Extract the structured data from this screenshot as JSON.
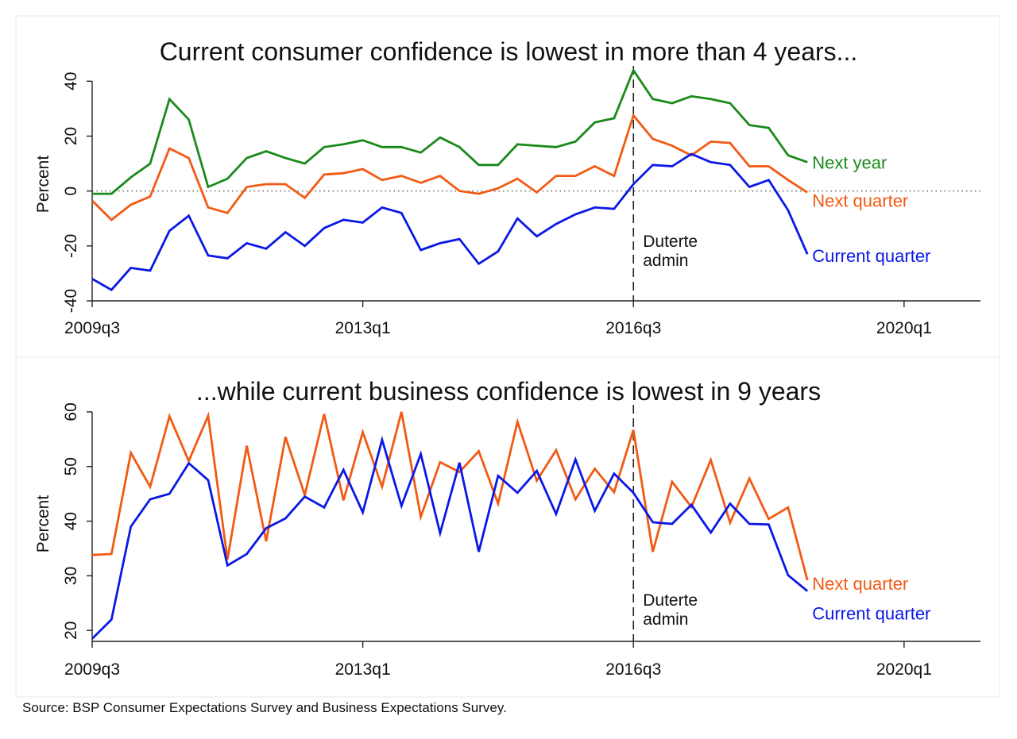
{
  "source_note": "Source: BSP Consumer Expectations Survey and Business Expectations Survey.",
  "chart_data": [
    {
      "type": "line",
      "title": "Current consumer confidence is lowest in more than 4 years...",
      "xlabel": "",
      "ylabel": "Percent",
      "x_start_quarter": "2009q3",
      "x_tick_labels": [
        "2009q3",
        "2013q1",
        "2016q3",
        "2020q1"
      ],
      "xlim": [
        "2009q3",
        "2020q4"
      ],
      "ylim": [
        -40,
        45
      ],
      "y_ticks": [
        -40,
        -20,
        0,
        20,
        40
      ],
      "y_tick_labels": [
        "-40",
        "-20",
        "0",
        "20",
        "40"
      ],
      "reference_line_y": 0,
      "marker": {
        "x": "2016q3",
        "label_lines": [
          "Duterte",
          "admin"
        ]
      },
      "legend_placement": "right-end labels",
      "series": [
        {
          "name": "Next year",
          "color": "#1a8a1a",
          "values": [
            -1,
            -1,
            5,
            10,
            33.5,
            26,
            1.5,
            4.5,
            12,
            14.5,
            12,
            10,
            16,
            17,
            18.5,
            16,
            16,
            14,
            19.5,
            16,
            9.5,
            9.5,
            17,
            16.5,
            16,
            18,
            25,
            26.5,
            44,
            33.5,
            32,
            34.5,
            33.5,
            32,
            24,
            23,
            13,
            10.5
          ]
        },
        {
          "name": "Next quarter",
          "color": "#f25a14",
          "values": [
            -3.5,
            -10.5,
            -5,
            -2,
            15.5,
            12,
            -6,
            -8,
            1.5,
            2.5,
            2.5,
            -2.5,
            6,
            6.5,
            8,
            4,
            5.5,
            3,
            5.5,
            0,
            -1,
            1,
            4.5,
            -0.5,
            5.5,
            5.5,
            9,
            5.5,
            27.5,
            19,
            16.5,
            13,
            18,
            17.5,
            9,
            9,
            4,
            -0.5
          ]
        },
        {
          "name": "Current quarter",
          "color": "#0a18e6",
          "values": [
            -32,
            -36,
            -28,
            -29,
            -14.5,
            -9,
            -23.5,
            -24.5,
            -19,
            -21,
            -15,
            -20,
            -13.5,
            -10.5,
            -11.5,
            -6,
            -8,
            -21.5,
            -19,
            -17.5,
            -26.5,
            -22,
            -10,
            -16.5,
            -12,
            -8.5,
            -6,
            -6.5,
            2.5,
            9.5,
            9,
            13.5,
            10.5,
            9.5,
            1.5,
            4,
            -7,
            -23
          ]
        }
      ]
    },
    {
      "type": "line",
      "title": "...while current business confidence is lowest in 9 years",
      "xlabel": "",
      "ylabel": "Percent",
      "x_start_quarter": "2009q3",
      "x_tick_labels": [
        "2009q3",
        "2013q1",
        "2016q3",
        "2020q1"
      ],
      "xlim": [
        "2009q3",
        "2020q4"
      ],
      "ylim": [
        18,
        61
      ],
      "y_ticks": [
        20,
        30,
        40,
        50,
        60
      ],
      "y_tick_labels": [
        "20",
        "30",
        "40",
        "50",
        "60"
      ],
      "marker": {
        "x": "2016q3",
        "label_lines": [
          "Duterte",
          "admin"
        ]
      },
      "legend_placement": "right-end labels",
      "series": [
        {
          "name": "Next quarter",
          "color": "#f25a14",
          "values": [
            33.8,
            34,
            52.5,
            46.3,
            59.2,
            51,
            59.3,
            33,
            53.8,
            36.3,
            55.4,
            44.8,
            59.6,
            43.8,
            56.3,
            46.3,
            60,
            40.8,
            50.8,
            49,
            52.8,
            43.2,
            58.2,
            47.4,
            53,
            44,
            49.6,
            45.3,
            56.7,
            34.4,
            47.2,
            42.6,
            51.2,
            39.7,
            47.8,
            40.4,
            42.5,
            29.2
          ]
        },
        {
          "name": "Current quarter",
          "color": "#0a18e6",
          "values": [
            18.5,
            22,
            39,
            44,
            45,
            50.6,
            47.5,
            31.9,
            34,
            38.7,
            40.5,
            44.5,
            42.5,
            49.4,
            41.6,
            54.9,
            42.8,
            52.3,
            37.8,
            50.7,
            34.4,
            48.3,
            45.2,
            49.2,
            41.3,
            51.3,
            41.9,
            48.7,
            45.2,
            39.8,
            39.5,
            43,
            37.9,
            43.2,
            39.5,
            39.4,
            30.1,
            27.2
          ]
        }
      ]
    }
  ]
}
